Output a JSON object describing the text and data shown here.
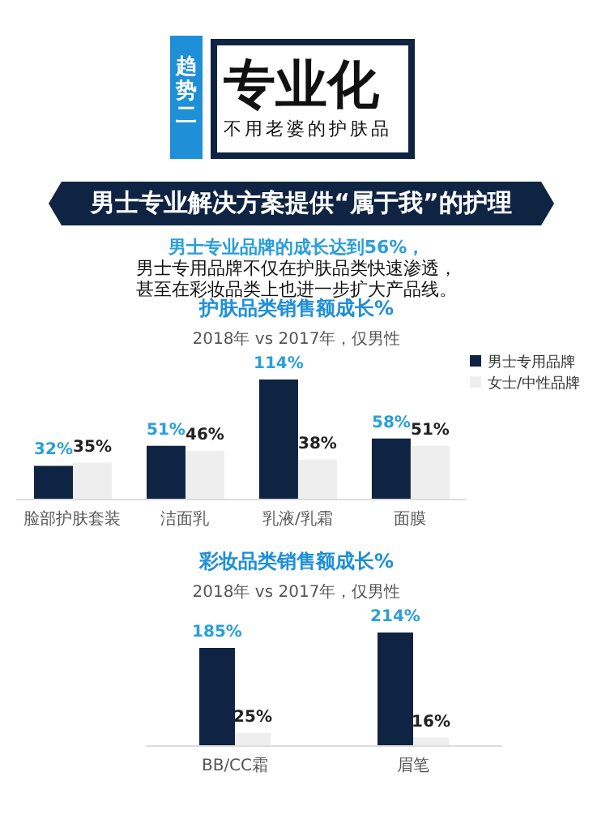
{
  "chart_data": [
    {
      "type": "bar",
      "title": "护肤品类销售额成长%",
      "subtitle": "2018年 vs 2017年，仅男性",
      "annotations": [
        "趋势二",
        "专业化",
        "不用老婆的护肤品",
        "男士专业解决方案提供“属于我”的护理",
        "男士专业品牌的成长达到56%，",
        "男士专用品牌不仅在护肤品类快速渗透，",
        "甚至在彩妆品类上也进一步扩大产品线。"
      ],
      "categories": [
        "脸部护肤套装",
        "洁面乳",
        "乳液/乳霜",
        "面膜"
      ],
      "series": [
        {
          "name": "男士专用品牌",
          "color": "#0e2442",
          "values": [
            32,
            51,
            114,
            58
          ],
          "value_labels": [
            "32%",
            "51%",
            "114%",
            "58%"
          ]
        },
        {
          "name": "女士/中性品牌",
          "color": "#eeeeee",
          "values": [
            35,
            46,
            38,
            51
          ],
          "value_labels": [
            "35%",
            "46%",
            "38%",
            "51%"
          ]
        }
      ],
      "legend": "top right"
    },
    {
      "type": "bar",
      "title": "彩妆品类销售额成长%",
      "subtitle": "2018年 vs 2017年，仅男性",
      "categories": [
        "BB/CC霜",
        "眉笔"
      ],
      "series": [
        {
          "color": "#0e2442",
          "values": [
            185,
            214
          ],
          "value_labels": [
            "185%",
            "214%"
          ]
        },
        {
          "color": "#eeeeee",
          "values": [
            25,
            16
          ],
          "value_labels": [
            "25%",
            "16%"
          ]
        }
      ],
      "legend": false
    }
  ]
}
